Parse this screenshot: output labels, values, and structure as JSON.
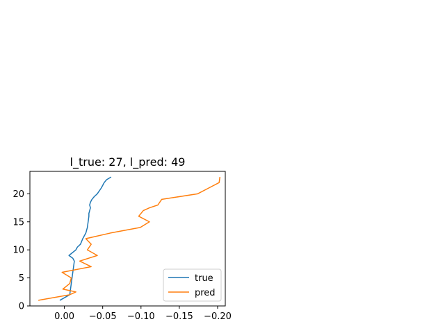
{
  "chart_data": {
    "type": "line",
    "title": "l_true: 27, l_pred: 49",
    "xlabel": "",
    "ylabel": "",
    "xlim": [
      0.045,
      -0.21
    ],
    "ylim": [
      0,
      24
    ],
    "x_inverted": true,
    "grid": false,
    "legend_position": "lower right",
    "x_ticks": [
      0.0,
      -0.05,
      -0.1,
      -0.15,
      -0.2
    ],
    "x_tick_labels": [
      "0.00",
      "−0.05",
      "−0.10",
      "−0.15",
      "−0.20"
    ],
    "y_ticks": [
      0,
      5,
      10,
      15,
      20
    ],
    "y_tick_labels": [
      "0",
      "5",
      "10",
      "15",
      "20"
    ],
    "series": [
      {
        "name": "true",
        "color": "#1f77b4",
        "x": [
          0.006,
          -0.007,
          -0.008,
          -0.009,
          -0.01,
          -0.011,
          -0.012,
          -0.013,
          -0.011,
          -0.006,
          -0.015,
          -0.017,
          -0.021,
          -0.024,
          -0.028,
          -0.03,
          -0.031,
          -0.032,
          -0.032,
          -0.033,
          -0.034,
          -0.033,
          -0.034,
          -0.036,
          -0.039,
          -0.043,
          -0.048,
          -0.05,
          -0.052,
          -0.055,
          -0.061
        ],
        "y": [
          1,
          2,
          3,
          4,
          5,
          6,
          7,
          8,
          8.5,
          9,
          10,
          10.5,
          11,
          12,
          13,
          14,
          15,
          16,
          16.5,
          17,
          17.5,
          18,
          18.5,
          19,
          19.5,
          20,
          21,
          21.5,
          22,
          22.5,
          23
        ]
      },
      {
        "name": "pred",
        "color": "#ff7f0e",
        "x": [
          0.034,
          -0.007,
          -0.015,
          0.002,
          -0.007,
          -0.009,
          0.003,
          -0.035,
          -0.02,
          -0.043,
          -0.03,
          -0.035,
          -0.028,
          -0.06,
          -0.099,
          -0.111,
          -0.097,
          -0.103,
          -0.111,
          -0.122,
          -0.127,
          -0.174,
          -0.188,
          -0.202,
          -0.203
        ],
        "y": [
          1,
          2,
          2.5,
          3,
          4,
          5,
          6,
          7,
          8,
          9,
          10,
          11,
          12,
          13,
          14,
          15,
          16,
          17,
          17.5,
          18,
          19,
          20,
          21,
          22,
          23
        ]
      }
    ]
  }
}
